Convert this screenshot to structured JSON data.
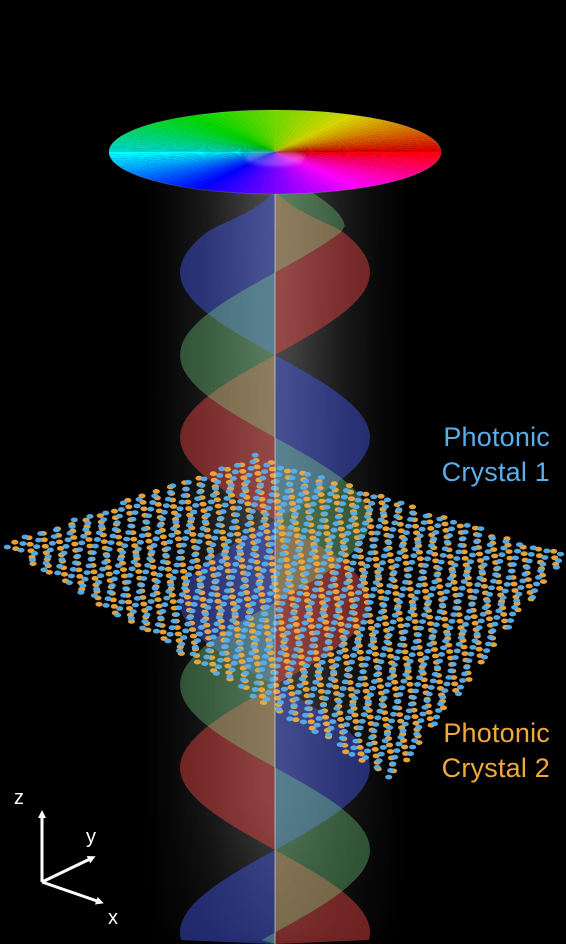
{
  "labels": {
    "crystal_1": {
      "line1": "Photonic",
      "line2": "Crystal 1"
    },
    "crystal_2": {
      "line1": "Photonic",
      "line2": "Crystal 2"
    }
  },
  "axes": {
    "z": "z",
    "y": "y",
    "x": "x"
  },
  "colors": {
    "background": "#000000",
    "crystal_1": "#5aaeea",
    "crystal_2": "#f2a93b",
    "beam_red": "#ff4a4a",
    "beam_blue": "#4a5cff",
    "beam_green": "#7fe28a",
    "axes": "#ffffff"
  },
  "elements": {
    "phase_disk": "hue phase disk",
    "helix": "twisted light beam",
    "lattice": "twisted bilayer photonic crystal"
  }
}
